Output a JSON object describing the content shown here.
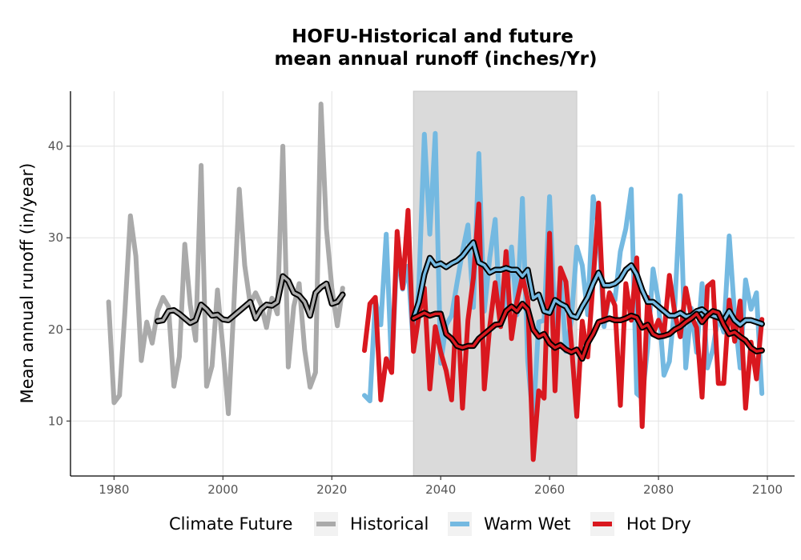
{
  "chart_data": {
    "type": "line",
    "title_line1": "HOFU-Historical and future",
    "title_line2": "mean annual runoff (inches/Yr)",
    "xlabel": "",
    "ylabel": "Mean annual runoff (in/year)",
    "xlim": [
      1972,
      2105
    ],
    "ylim": [
      4,
      46
    ],
    "xticks": [
      1980,
      2000,
      2020,
      2040,
      2060,
      2080,
      2100
    ],
    "yticks": [
      10,
      20,
      30,
      40
    ],
    "grid": true,
    "shaded_period": [
      2035,
      2065
    ],
    "legend": {
      "title": "Climate Future",
      "position": "bottom",
      "entries": [
        "Historical",
        "Warm Wet",
        "Hot Dry"
      ]
    },
    "colors": {
      "Historical": "#aaaaaa",
      "Warm Wet": "#74b9e1",
      "Hot Dry": "#d9181f",
      "smooth": "#000000",
      "shade": "#dadada"
    },
    "series": [
      {
        "name": "Historical",
        "x": [
          1979,
          1980,
          1981,
          1982,
          1983,
          1984,
          1985,
          1986,
          1987,
          1988,
          1989,
          1990,
          1991,
          1992,
          1993,
          1994,
          1995,
          1996,
          1997,
          1998,
          1999,
          2000,
          2001,
          2002,
          2003,
          2004,
          2005,
          2006,
          2007,
          2008,
          2009,
          2010,
          2011,
          2012,
          2013,
          2014,
          2015,
          2016,
          2017,
          2018,
          2019,
          2020,
          2021,
          2022
        ],
        "values": [
          23,
          12,
          12.8,
          22,
          32.4,
          28,
          16.6,
          20.8,
          18.5,
          22,
          23.5,
          22.5,
          13.8,
          17,
          29.3,
          22.7,
          18.8,
          37.9,
          13.8,
          16,
          24.3,
          18,
          10.8,
          22.5,
          35.3,
          27,
          22.8,
          24,
          22.7,
          20.2,
          23.4,
          21.7,
          40,
          15.9,
          22.5,
          25,
          17.8,
          13.7,
          15.3,
          44.6,
          31,
          24.5,
          20.4,
          24.5
        ]
      },
      {
        "name": "Warm Wet",
        "x": [
          2026,
          2027,
          2028,
          2029,
          2030,
          2031,
          2032,
          2033,
          2034,
          2035,
          2036,
          2037,
          2038,
          2039,
          2040,
          2041,
          2042,
          2043,
          2044,
          2045,
          2046,
          2047,
          2048,
          2049,
          2050,
          2051,
          2052,
          2053,
          2054,
          2055,
          2056,
          2057,
          2058,
          2059,
          2060,
          2061,
          2062,
          2063,
          2064,
          2065,
          2066,
          2067,
          2068,
          2069,
          2070,
          2071,
          2072,
          2073,
          2074,
          2075,
          2076,
          2077,
          2078,
          2079,
          2080,
          2081,
          2082,
          2083,
          2084,
          2085,
          2086,
          2087,
          2088,
          2089,
          2090,
          2091,
          2092,
          2093,
          2094,
          2095,
          2096,
          2097,
          2098,
          2099
        ],
        "values": [
          12.8,
          12.2,
          23.2,
          20.5,
          30.4,
          15.5,
          28.8,
          24.4,
          26.9,
          18,
          25,
          41.3,
          30.4,
          41.4,
          16.3,
          20.5,
          21.5,
          25.1,
          28.5,
          31.4,
          22.4,
          39.2,
          22,
          27.8,
          32,
          20.3,
          22.6,
          29,
          21.6,
          34.3,
          16.5,
          9.9,
          20.8,
          21,
          34.5,
          20.4,
          26,
          17.6,
          21,
          29,
          27,
          21.6,
          34.5,
          31,
          20.3,
          24,
          23.2,
          28.5,
          31,
          35.3,
          13,
          12.5,
          18,
          26.6,
          23,
          15,
          16.5,
          22.7,
          34.6,
          15.8,
          22.3,
          17.5,
          25,
          15.8,
          17.8,
          21.5,
          19.7,
          30.2,
          21.5,
          15.8,
          25.4,
          22.2,
          24,
          13
        ]
      },
      {
        "name": "Hot Dry",
        "x": [
          2026,
          2027,
          2028,
          2029,
          2030,
          2031,
          2032,
          2033,
          2034,
          2035,
          2036,
          2037,
          2038,
          2039,
          2040,
          2041,
          2042,
          2043,
          2044,
          2045,
          2046,
          2047,
          2048,
          2049,
          2050,
          2051,
          2052,
          2053,
          2054,
          2055,
          2056,
          2057,
          2058,
          2059,
          2060,
          2061,
          2062,
          2063,
          2064,
          2065,
          2066,
          2067,
          2068,
          2069,
          2070,
          2071,
          2072,
          2073,
          2074,
          2075,
          2076,
          2077,
          2078,
          2079,
          2080,
          2081,
          2082,
          2083,
          2084,
          2085,
          2086,
          2087,
          2088,
          2089,
          2090,
          2091,
          2092,
          2093,
          2094,
          2095,
          2096,
          2097,
          2098,
          2099
        ],
        "values": [
          17.7,
          22.8,
          23.5,
          12.3,
          16.8,
          15.3,
          30.7,
          24.5,
          33,
          17.6,
          21.5,
          24.5,
          13.5,
          20.3,
          17.5,
          15.5,
          12.3,
          23.5,
          11.4,
          21,
          25.6,
          33.7,
          13.5,
          20.3,
          25.1,
          20.3,
          28.5,
          19,
          23.1,
          25.8,
          23.2,
          5.8,
          13.3,
          12.5,
          30.5,
          13.3,
          26.7,
          25.2,
          18.5,
          10.5,
          20.9,
          17,
          25.3,
          33.8,
          20.9,
          24,
          22.6,
          11.7,
          25,
          21,
          27.8,
          9.4,
          23.5,
          19.5,
          21,
          19.5,
          25.9,
          21.7,
          19.2,
          24.5,
          21.5,
          20.2,
          12.6,
          24.7,
          25.2,
          14.1,
          14.1,
          23.2,
          18.7,
          23.1,
          11.4,
          18.6,
          14.6,
          21.1
        ]
      },
      {
        "name": "Historical smoothed",
        "x": [
          1988,
          1989,
          1990,
          1991,
          1992,
          1993,
          1994,
          1995,
          1996,
          1997,
          1998,
          1999,
          2000,
          2001,
          2002,
          2003,
          2004,
          2005,
          2006,
          2007,
          2008,
          2009,
          2010,
          2011,
          2012,
          2013,
          2014,
          2015,
          2016,
          2017,
          2018,
          2019,
          2020,
          2021,
          2022
        ],
        "values": [
          20.9,
          21,
          22,
          22.1,
          21.7,
          21.2,
          20.7,
          21,
          22.7,
          22.2,
          21.5,
          21.6,
          21.1,
          21,
          21.5,
          22,
          22.5,
          23,
          21.2,
          22.2,
          22.7,
          22.6,
          23,
          25.8,
          25.3,
          24,
          23.7,
          23,
          21.5,
          24,
          24.6,
          25,
          22.8,
          23,
          23.8
        ]
      },
      {
        "name": "Warm Wet smoothed",
        "x": [
          2035,
          2036,
          2037,
          2038,
          2039,
          2040,
          2041,
          2042,
          2043,
          2044,
          2045,
          2046,
          2047,
          2048,
          2049,
          2050,
          2051,
          2052,
          2053,
          2054,
          2055,
          2056,
          2057,
          2058,
          2059,
          2060,
          2061,
          2062,
          2063,
          2064,
          2065,
          2066,
          2067,
          2068,
          2069,
          2070,
          2071,
          2072,
          2073,
          2074,
          2075,
          2076,
          2077,
          2078,
          2079,
          2080,
          2081,
          2082,
          2083,
          2084,
          2085,
          2086,
          2087,
          2088,
          2089,
          2090,
          2091,
          2092,
          2093,
          2094,
          2095,
          2096,
          2097,
          2098,
          2099
        ],
        "values": [
          21.2,
          23,
          26,
          27.8,
          27,
          27.2,
          26.8,
          27.2,
          27.5,
          28,
          28.8,
          29.5,
          27.3,
          27,
          26.2,
          26.5,
          26.5,
          26.7,
          26.5,
          26.5,
          25.8,
          26.5,
          23.4,
          23.8,
          22,
          21.8,
          23.2,
          22.8,
          22.5,
          21.5,
          21.3,
          22.5,
          23.5,
          25,
          26.2,
          24.8,
          24.8,
          25,
          25.5,
          26.5,
          27,
          26,
          24.3,
          23,
          23,
          22.5,
          22,
          21.5,
          21.5,
          21.8,
          21.4,
          21.5,
          22,
          22.2,
          21.7,
          21.5,
          21.3,
          21,
          22,
          21,
          20.5,
          21,
          21,
          20.8,
          20.6
        ]
      },
      {
        "name": "Hot Dry smoothed",
        "x": [
          2035,
          2036,
          2037,
          2038,
          2039,
          2040,
          2041,
          2042,
          2043,
          2044,
          2045,
          2046,
          2047,
          2048,
          2049,
          2050,
          2051,
          2052,
          2053,
          2054,
          2055,
          2056,
          2057,
          2058,
          2059,
          2060,
          2061,
          2062,
          2063,
          2064,
          2065,
          2066,
          2067,
          2068,
          2069,
          2070,
          2071,
          2072,
          2073,
          2074,
          2075,
          2076,
          2077,
          2078,
          2079,
          2080,
          2081,
          2082,
          2083,
          2084,
          2085,
          2086,
          2087,
          2088,
          2089,
          2090,
          2091,
          2092,
          2093,
          2094,
          2095,
          2096,
          2097,
          2098,
          2099
        ],
        "values": [
          21.2,
          21.5,
          21.8,
          21.5,
          21.7,
          21.7,
          19.5,
          19,
          18.2,
          18,
          18.2,
          18.2,
          19,
          19.5,
          20,
          20.5,
          20.6,
          22,
          22.5,
          22,
          22.8,
          22.2,
          20,
          19.2,
          19.5,
          18.5,
          18,
          18.3,
          17.8,
          17.5,
          17.8,
          16.8,
          18.5,
          19.5,
          20.8,
          21,
          21.2,
          21,
          21,
          21.2,
          21.5,
          21.3,
          20.2,
          20.5,
          19.5,
          19.2,
          19.3,
          19.5,
          20,
          20.3,
          20.8,
          21.2,
          21.7,
          20.8,
          21.5,
          22,
          21.8,
          20.5,
          19.5,
          19.7,
          19.2,
          18.8,
          18,
          17.6,
          17.7
        ]
      }
    ]
  }
}
